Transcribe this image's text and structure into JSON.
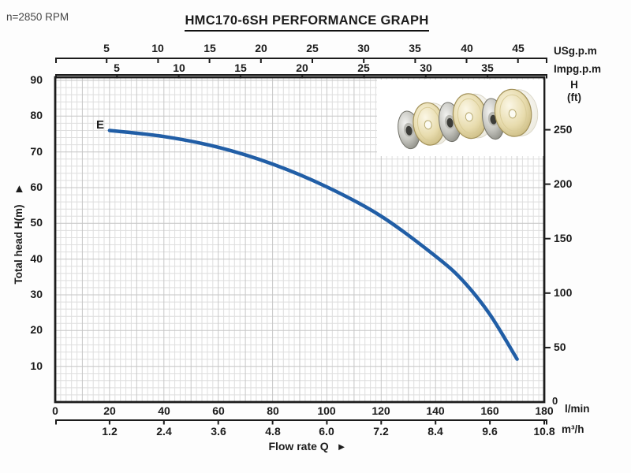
{
  "header": {
    "rpm_note": "n=2850 RPM",
    "title": "HMC170-6SH PERFORMANCE GRAPH"
  },
  "icons": {
    "up_arrow": "▲",
    "right_arrow": "►"
  },
  "chart_data": {
    "type": "line",
    "title": "HMC170-6SH PERFORMANCE GRAPH",
    "subtitle": "n=2850 RPM",
    "xlabel": "Flow rate Q",
    "grid": true,
    "legend": "none",
    "curve_color": "#215ea6",
    "series": [
      {
        "name": "E",
        "unit_x": "l/min",
        "unit_y": "m",
        "points": [
          [
            20,
            76
          ],
          [
            40,
            74.3
          ],
          [
            60,
            71.3
          ],
          [
            80,
            66.6
          ],
          [
            100,
            60.2
          ],
          [
            120,
            52
          ],
          [
            140,
            40.8
          ],
          [
            150,
            34
          ],
          [
            160,
            24.5
          ],
          [
            170,
            12
          ]
        ]
      }
    ],
    "axes": {
      "x_bottom_lmin": {
        "unit": "l/min",
        "range": [
          0,
          180
        ],
        "ticks": [
          0,
          20,
          40,
          60,
          80,
          100,
          120,
          140,
          160,
          180
        ]
      },
      "x_bottom_m3h": {
        "unit": "m³/h",
        "ticks": [
          "1.2",
          "2.4",
          "3.6",
          "4.8",
          "6.0",
          "7.2",
          "8.4",
          "9.6",
          "10.8"
        ]
      },
      "x_top_usgpm": {
        "unit": "USg.p.m",
        "ticks": [
          5,
          10,
          15,
          20,
          25,
          30,
          35,
          40,
          45
        ]
      },
      "x_top_impgpm": {
        "unit": "Impg.p.m",
        "ticks": [
          5,
          10,
          15,
          20,
          25,
          30,
          35
        ]
      },
      "y_left_m": {
        "label": "Total head H(m)",
        "range": [
          0,
          90
        ],
        "ticks": [
          10,
          20,
          30,
          40,
          50,
          60,
          70,
          80,
          90
        ]
      },
      "y_right_ft": {
        "label_line1": "H",
        "label_line2": "(ft)",
        "ticks": [
          50,
          100,
          150,
          200,
          250
        ],
        "zero_label": "0"
      }
    }
  }
}
